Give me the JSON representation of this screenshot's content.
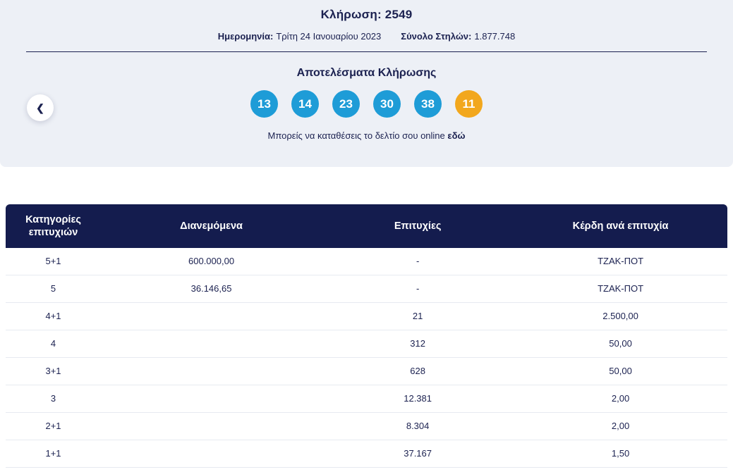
{
  "header": {
    "draw_label": "Κλήρωση:",
    "draw_number": "2549",
    "date_label": "Ημερομηνία:",
    "date_value": "Τρίτη 24 Ιανουαρίου 2023",
    "columns_label": "Σύνολο Στηλών:",
    "columns_value": "1.877.748"
  },
  "results": {
    "title": "Αποτελέσματα Κλήρωσης",
    "numbers": [
      "13",
      "14",
      "23",
      "30",
      "38"
    ],
    "joker": "11",
    "cta_text": "Μπορείς να καταθέσεις το δελτίο σου online",
    "cta_link": "εδώ",
    "back_icon": "❮"
  },
  "table": {
    "headers": {
      "category": "Κατηγορίες επιτυχιών",
      "distributed": "Διανεμόμενα",
      "winners": "Επιτυχίες",
      "prize": "Κέρδη ανά επιτυχία"
    },
    "rows": [
      {
        "category": "5+1",
        "distributed": "600.000,00",
        "winners": "-",
        "prize": "ΤΖΑΚ-ΠΟΤ"
      },
      {
        "category": "5",
        "distributed": "36.146,65",
        "winners": "-",
        "prize": "ΤΖΑΚ-ΠΟΤ"
      },
      {
        "category": "4+1",
        "distributed": "",
        "winners": "21",
        "prize": "2.500,00"
      },
      {
        "category": "4",
        "distributed": "",
        "winners": "312",
        "prize": "50,00"
      },
      {
        "category": "3+1",
        "distributed": "",
        "winners": "628",
        "prize": "50,00"
      },
      {
        "category": "3",
        "distributed": "",
        "winners": "12.381",
        "prize": "2,00"
      },
      {
        "category": "2+1",
        "distributed": "",
        "winners": "8.304",
        "prize": "2,00"
      },
      {
        "category": "1+1",
        "distributed": "",
        "winners": "37.167",
        "prize": "1,50"
      }
    ]
  },
  "colors": {
    "navy_text": "#1b2150",
    "table_header_bg": "#141c4e",
    "hero_bg": "#edf0f6",
    "ball_blue": "#1e9cd7",
    "ball_joker": "#f2a71d"
  }
}
